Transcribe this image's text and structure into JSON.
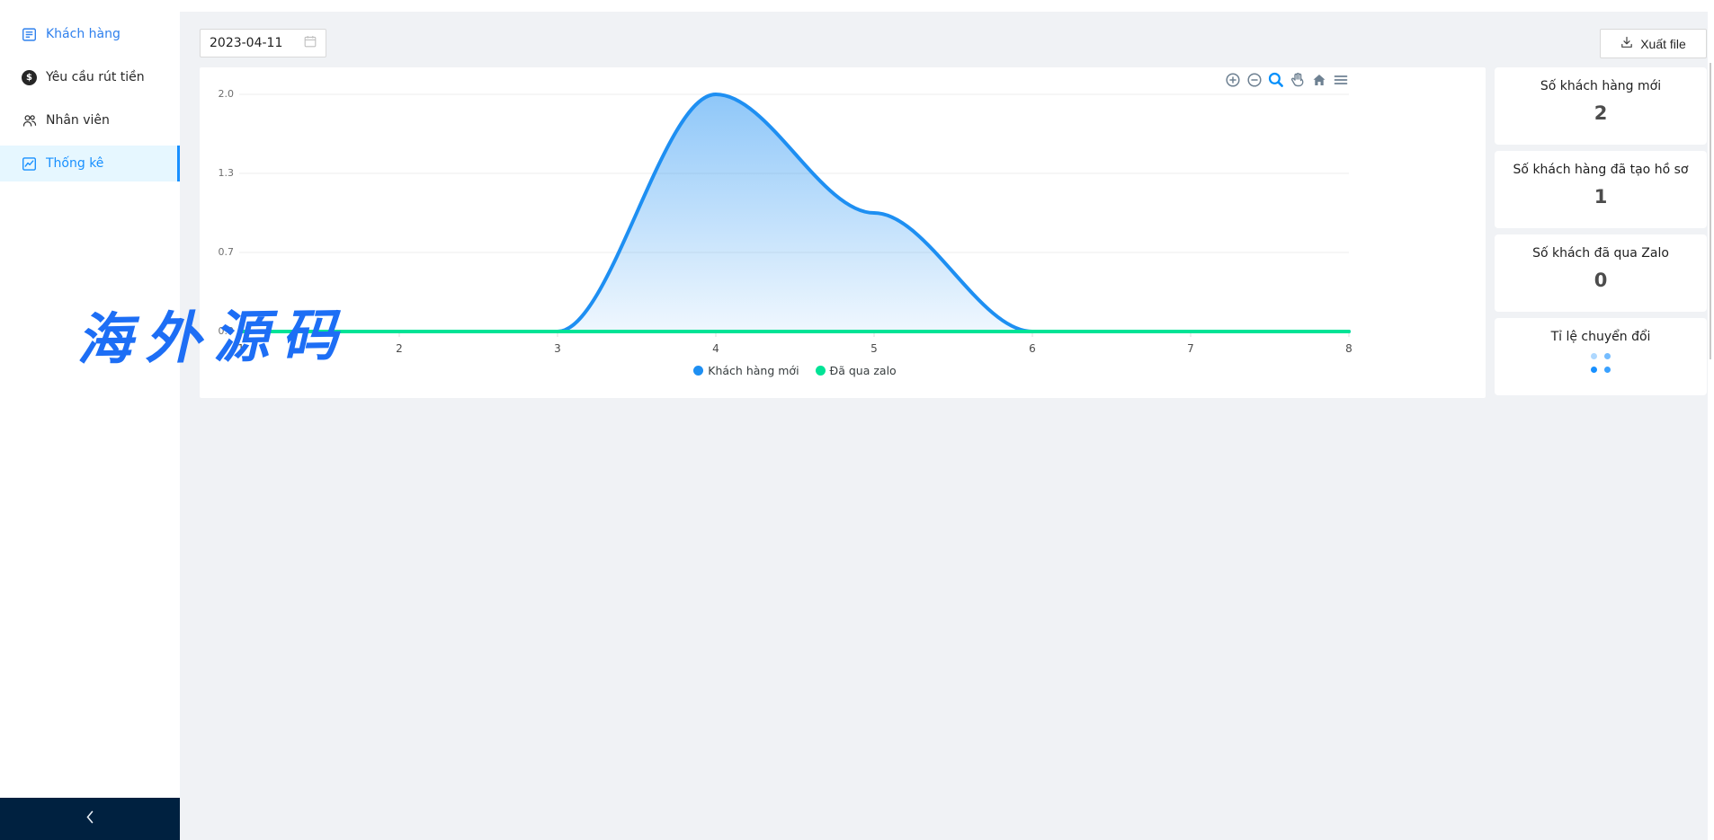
{
  "sidebar": {
    "items": [
      {
        "label": "Khách hàng",
        "icon": "account-book-icon",
        "active": false
      },
      {
        "label": "Yêu cầu rút tiền",
        "icon": "dollar-circle-icon",
        "active": false
      },
      {
        "label": "Nhân viên",
        "icon": "usergroup-icon",
        "active": false
      },
      {
        "label": "Thống kê",
        "icon": "line-chart-icon",
        "active": true
      }
    ]
  },
  "toolbar": {
    "date_value": "2023-04-11",
    "export_label": "Xuất file"
  },
  "watermark": {
    "text": "海外源码",
    "color": "#1d6ef5"
  },
  "chart_data": {
    "type": "area",
    "x": [
      1,
      2,
      3,
      4,
      5,
      6,
      7,
      8
    ],
    "series": [
      {
        "name": "Khách hàng mới",
        "color": "#1e8ff2",
        "values": [
          0,
          0,
          0,
          2,
          1,
          0,
          0,
          0
        ]
      },
      {
        "name": "Đã qua zalo",
        "color": "#00e396",
        "values": [
          0,
          0,
          0,
          0,
          0,
          0,
          0,
          0
        ]
      }
    ],
    "y_ticks": [
      "2.0",
      "1.3",
      "0.7",
      "0.0"
    ],
    "ylim": [
      0,
      2
    ],
    "xlim": [
      1,
      8
    ],
    "smooth": true,
    "grid": true,
    "legend_position": "bottom",
    "toolbar_icons": [
      "zoom-in",
      "zoom-out",
      "selection-zoom",
      "pan",
      "home",
      "menu"
    ],
    "toolbar_active": "selection-zoom"
  },
  "stats": [
    {
      "title": "Số khách hàng mới",
      "value": "2"
    },
    {
      "title": "Số khách hàng đã tạo hồ sơ",
      "value": "1"
    },
    {
      "title": "Số khách đã qua Zalo",
      "value": "0"
    },
    {
      "title": "Tỉ lệ chuyển đổi",
      "value": "",
      "loading": true
    }
  ],
  "colors": {
    "accent": "#1890ff",
    "active_item_bg": "#e6f7ff",
    "sider_trigger_bg": "#002140",
    "main_bg": "#f0f2f5",
    "series_blue": "#1e8ff2",
    "series_green": "#00e396"
  }
}
